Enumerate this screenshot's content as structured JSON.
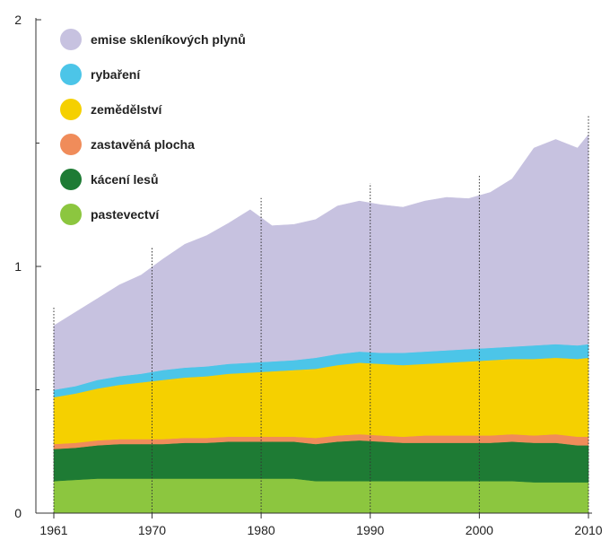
{
  "chart_data": {
    "type": "area",
    "stacked": true,
    "x": [
      1961,
      1963,
      1965,
      1967,
      1969,
      1971,
      1973,
      1975,
      1977,
      1979,
      1981,
      1983,
      1985,
      1987,
      1989,
      1991,
      1993,
      1995,
      1997,
      1999,
      2001,
      2003,
      2005,
      2007,
      2009,
      2010
    ],
    "xticks": [
      "1961",
      "1970",
      "1980",
      "1990",
      "2000",
      "2010"
    ],
    "xtick_values": [
      1961,
      1970,
      1980,
      1990,
      2000,
      2010
    ],
    "yticks": [
      "0",
      "1",
      "2"
    ],
    "ytick_values": [
      0,
      1,
      2
    ],
    "ylim": [
      0,
      2
    ],
    "xlim": [
      1961,
      2010
    ],
    "vertical_gridlines": "dotted at decade ticks",
    "legend_placement": "top-left",
    "title": "",
    "xlabel": "",
    "ylabel": "",
    "series": [
      {
        "name": "pastevectví",
        "color": "#8cc63f",
        "values": [
          0.13,
          0.135,
          0.14,
          0.14,
          0.14,
          0.14,
          0.14,
          0.14,
          0.14,
          0.14,
          0.14,
          0.14,
          0.13,
          0.13,
          0.13,
          0.13,
          0.13,
          0.13,
          0.13,
          0.13,
          0.13,
          0.13,
          0.125,
          0.125,
          0.125,
          0.125
        ]
      },
      {
        "name": "kácení lesů",
        "color": "#1e7b34",
        "values": [
          0.13,
          0.13,
          0.135,
          0.14,
          0.14,
          0.14,
          0.145,
          0.145,
          0.15,
          0.15,
          0.15,
          0.15,
          0.15,
          0.16,
          0.165,
          0.16,
          0.155,
          0.155,
          0.155,
          0.155,
          0.155,
          0.16,
          0.16,
          0.16,
          0.15,
          0.15
        ]
      },
      {
        "name": "zastavěná plocha",
        "color": "#f08c5a",
        "values": [
          0.02,
          0.02,
          0.02,
          0.02,
          0.02,
          0.02,
          0.02,
          0.02,
          0.02,
          0.02,
          0.02,
          0.02,
          0.025,
          0.025,
          0.025,
          0.025,
          0.025,
          0.03,
          0.03,
          0.03,
          0.03,
          0.03,
          0.03,
          0.035,
          0.035,
          0.035
        ]
      },
      {
        "name": "zemědělství",
        "color": "#f5d000",
        "values": [
          0.19,
          0.2,
          0.21,
          0.22,
          0.23,
          0.24,
          0.245,
          0.25,
          0.255,
          0.26,
          0.265,
          0.27,
          0.28,
          0.285,
          0.29,
          0.29,
          0.29,
          0.29,
          0.295,
          0.3,
          0.305,
          0.305,
          0.31,
          0.31,
          0.315,
          0.32
        ]
      },
      {
        "name": "rybaření",
        "color": "#4cc5e8",
        "values": [
          0.03,
          0.03,
          0.035,
          0.035,
          0.035,
          0.04,
          0.04,
          0.04,
          0.04,
          0.04,
          0.04,
          0.04,
          0.045,
          0.045,
          0.045,
          0.045,
          0.05,
          0.05,
          0.05,
          0.05,
          0.05,
          0.05,
          0.055,
          0.055,
          0.055,
          0.055
        ]
      },
      {
        "name": "emise skleníkových plynů",
        "color": "#c7c2e0",
        "values": [
          0.26,
          0.3,
          0.33,
          0.37,
          0.4,
          0.45,
          0.5,
          0.53,
          0.57,
          0.62,
          0.55,
          0.55,
          0.56,
          0.6,
          0.61,
          0.6,
          0.59,
          0.61,
          0.62,
          0.61,
          0.63,
          0.68,
          0.8,
          0.83,
          0.8,
          0.85
        ]
      }
    ]
  }
}
